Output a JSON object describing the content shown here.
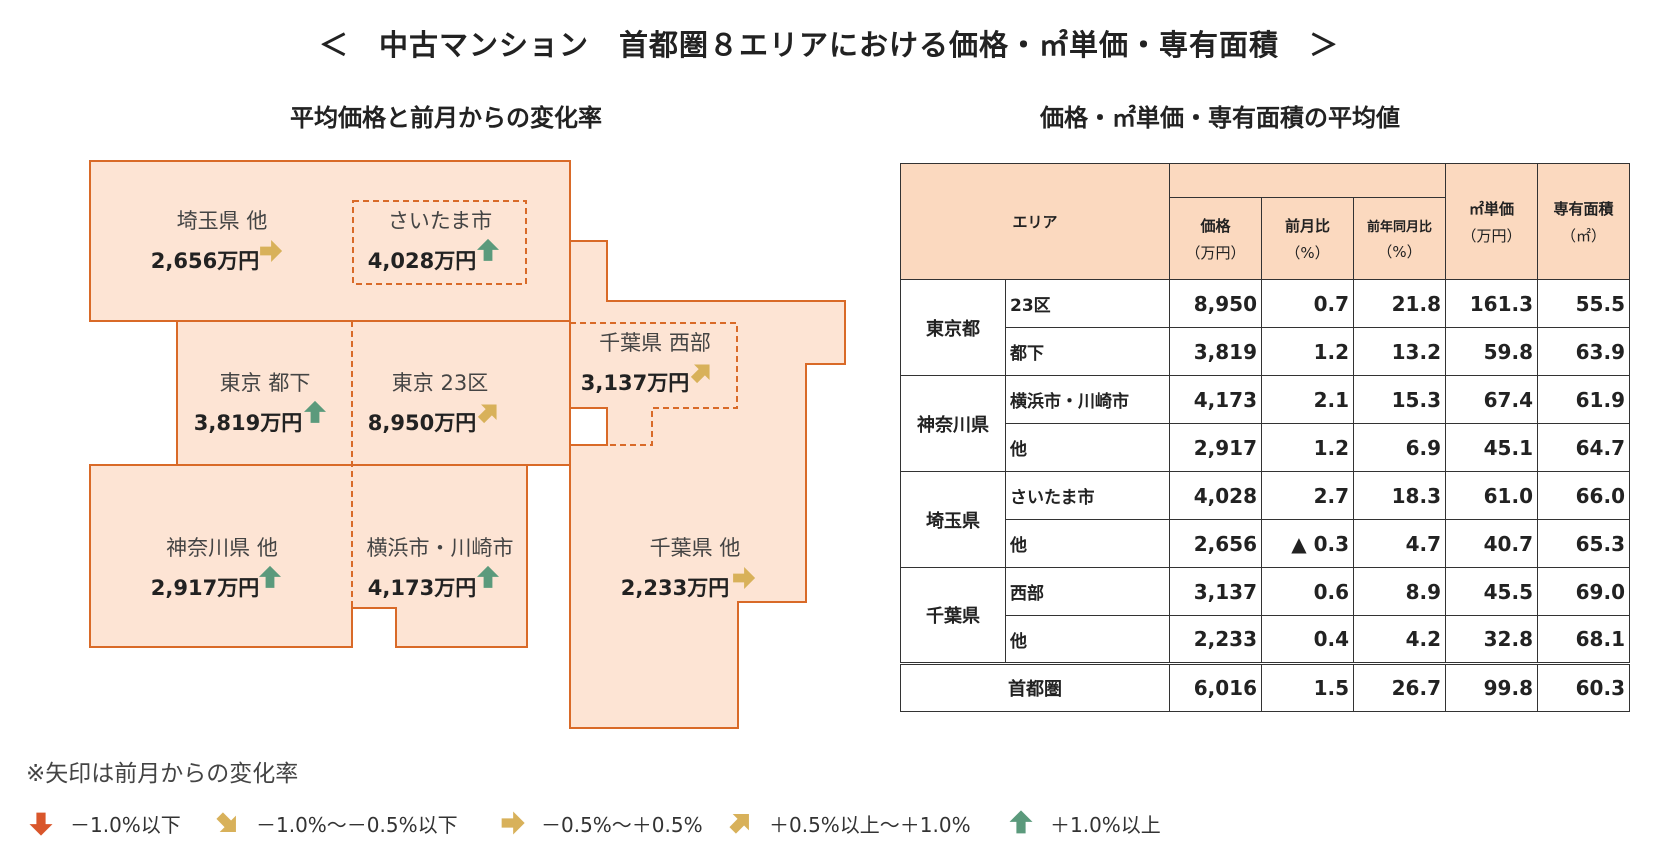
{
  "title": "＜　中古マンション　首都圏８エリアにおける価格・㎡単価・専有面積　＞",
  "left_subtitle": "平均価格と前月からの変化率",
  "right_subtitle": "価格・㎡単価・専有面積の平均値",
  "colors": {
    "region_fill": "#fde4d4",
    "region_border": "#d96a28",
    "header_fill": "#fbd9bf",
    "arrow_down": "#d9562b",
    "arrow_down_slight": "#d8b15a",
    "arrow_flat": "#d8b15a",
    "arrow_up_slight": "#d8b15a",
    "arrow_up": "#5b9a7c"
  },
  "regions": {
    "saitama_other": {
      "name": "埼玉県 他",
      "price": "2,656万円",
      "trend": "flat"
    },
    "saitama_city": {
      "name": "さいたま市",
      "price": "4,028万円",
      "trend": "up"
    },
    "tokyo_other": {
      "name": "東京 都下",
      "price": "3,819万円",
      "trend": "up"
    },
    "tokyo_23": {
      "name": "東京 23区",
      "price": "8,950万円",
      "trend": "up-slight"
    },
    "chiba_west": {
      "name": "千葉県 西部",
      "price": "3,137万円",
      "trend": "up-slight"
    },
    "kanagawa_other": {
      "name": "神奈川県 他",
      "price": "2,917万円",
      "trend": "up"
    },
    "yokohama_kawasaki": {
      "name": "横浜市・川崎市",
      "price": "4,173万円",
      "trend": "up"
    },
    "chiba_other": {
      "name": "千葉県 他",
      "price": "2,233万円",
      "trend": "flat"
    }
  },
  "table": {
    "headers": {
      "area": "エリア",
      "price": "価格",
      "price_unit": "（万円）",
      "mom": "前月比",
      "mom_unit": "（%）",
      "yoy": "前年同月比",
      "yoy_unit": "（%）",
      "unit_price": "㎡単価",
      "unit_price_unit": "（万円）",
      "area_size": "専有面積",
      "area_size_unit": "（㎡）"
    },
    "groups": [
      {
        "pref": "東京都",
        "rows": [
          {
            "sub": "23区",
            "price": "8,950",
            "mom": "0.7",
            "yoy": "21.8",
            "unit": "161.3",
            "size": "55.5"
          },
          {
            "sub": "都下",
            "price": "3,819",
            "mom": "1.2",
            "yoy": "13.2",
            "unit": "59.8",
            "size": "63.9"
          }
        ]
      },
      {
        "pref": "神奈川県",
        "rows": [
          {
            "sub": "横浜市・川崎市",
            "price": "4,173",
            "mom": "2.1",
            "yoy": "15.3",
            "unit": "67.4",
            "size": "61.9"
          },
          {
            "sub": "他",
            "price": "2,917",
            "mom": "1.2",
            "yoy": "6.9",
            "unit": "45.1",
            "size": "64.7"
          }
        ]
      },
      {
        "pref": "埼玉県",
        "rows": [
          {
            "sub": "さいたま市",
            "price": "4,028",
            "mom": "2.7",
            "yoy": "18.3",
            "unit": "61.0",
            "size": "66.0"
          },
          {
            "sub": "他",
            "price": "2,656",
            "mom": "▲ 0.3",
            "yoy": "4.7",
            "unit": "40.7",
            "size": "65.3"
          }
        ]
      },
      {
        "pref": "千葉県",
        "rows": [
          {
            "sub": "西部",
            "price": "3,137",
            "mom": "0.6",
            "yoy": "8.9",
            "unit": "45.5",
            "size": "69.0"
          },
          {
            "sub": "他",
            "price": "2,233",
            "mom": "0.4",
            "yoy": "4.2",
            "unit": "32.8",
            "size": "68.1"
          }
        ]
      }
    ],
    "total": {
      "label": "首都圏",
      "price": "6,016",
      "mom": "1.5",
      "yoy": "26.7",
      "unit": "99.8",
      "size": "60.3"
    }
  },
  "note": "※矢印は前月からの変化率",
  "legend": [
    {
      "trend": "down",
      "icon": "arrow-down-icon",
      "label": "－1.0%以下"
    },
    {
      "trend": "down-slight",
      "icon": "arrow-down-right-icon",
      "label": "－1.0%～－0.5%以下"
    },
    {
      "trend": "flat",
      "icon": "arrow-right-icon",
      "label": "－0.5%～＋0.5%"
    },
    {
      "trend": "up-slight",
      "icon": "arrow-up-right-icon",
      "label": "＋0.5%以上～＋1.0%"
    },
    {
      "trend": "up",
      "icon": "arrow-up-icon",
      "label": "＋1.0%以上"
    }
  ]
}
